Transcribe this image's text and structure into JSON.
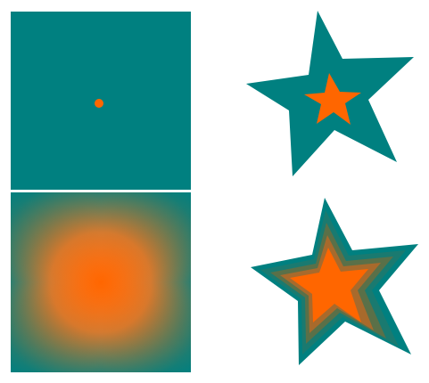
{
  "colors": {
    "teal": "#008080",
    "orange": "#ff6600",
    "background": "#ffffff",
    "separator": "#ffffff"
  },
  "shapes": {
    "square_top": {
      "description_id": "solid-teal-square-with-orange-dot",
      "fill": "teal",
      "dot_fill": "orange"
    },
    "star_top": {
      "description_id": "solid-teal-star-with-small-orange-star",
      "fill": "teal",
      "inner_fill": "orange"
    },
    "square_bottom": {
      "description_id": "square-gradient-orange-center-to-teal-edges",
      "center_color": "orange",
      "edge_color": "teal"
    },
    "star_bottom": {
      "description_id": "star-gradient-orange-center-to-teal-edges",
      "center_color": "orange",
      "edge_color": "teal"
    }
  }
}
